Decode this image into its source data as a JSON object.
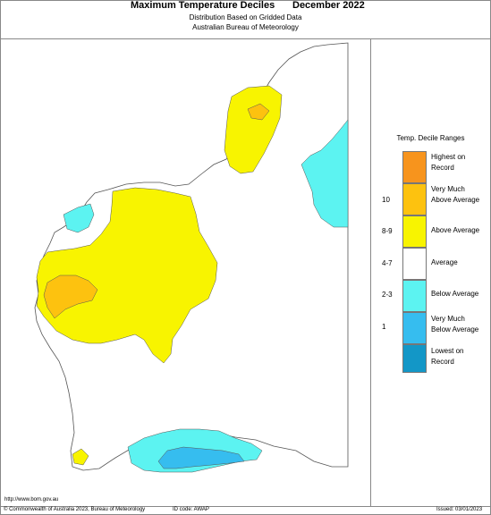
{
  "header": {
    "title": "Maximum Temperature Deciles",
    "period": "December 2022",
    "subtitle1": "Distribution Based on Gridded Data",
    "subtitle2": "Australian Bureau of Meteorology"
  },
  "legend": {
    "title": "Temp. Decile Ranges",
    "items": [
      {
        "label": "Highest on\nRecord",
        "range": "",
        "color": "#f7941d"
      },
      {
        "label": "Very Much\nAbove Average",
        "range": "10",
        "color": "#fdc20f"
      },
      {
        "label": "Above Average",
        "range": "8-9",
        "color": "#f8f400"
      },
      {
        "label": "Average",
        "range": "4-7",
        "color": "#ffffff"
      },
      {
        "label": "Below Average",
        "range": "2-3",
        "color": "#5cf3f1"
      },
      {
        "label": "Very Much\nBelow Average",
        "range": "1",
        "color": "#36bdef"
      },
      {
        "label": "Lowest on\nRecord",
        "range": "",
        "color": "#1397c7"
      }
    ]
  },
  "footer": {
    "url": "http://www.bom.gov.au",
    "copyright": "© Commonwealth of Australia 2023, Bureau of Meteorology",
    "id_code": "ID code: AWAP",
    "issued": "Issued: 03/01/2023"
  }
}
